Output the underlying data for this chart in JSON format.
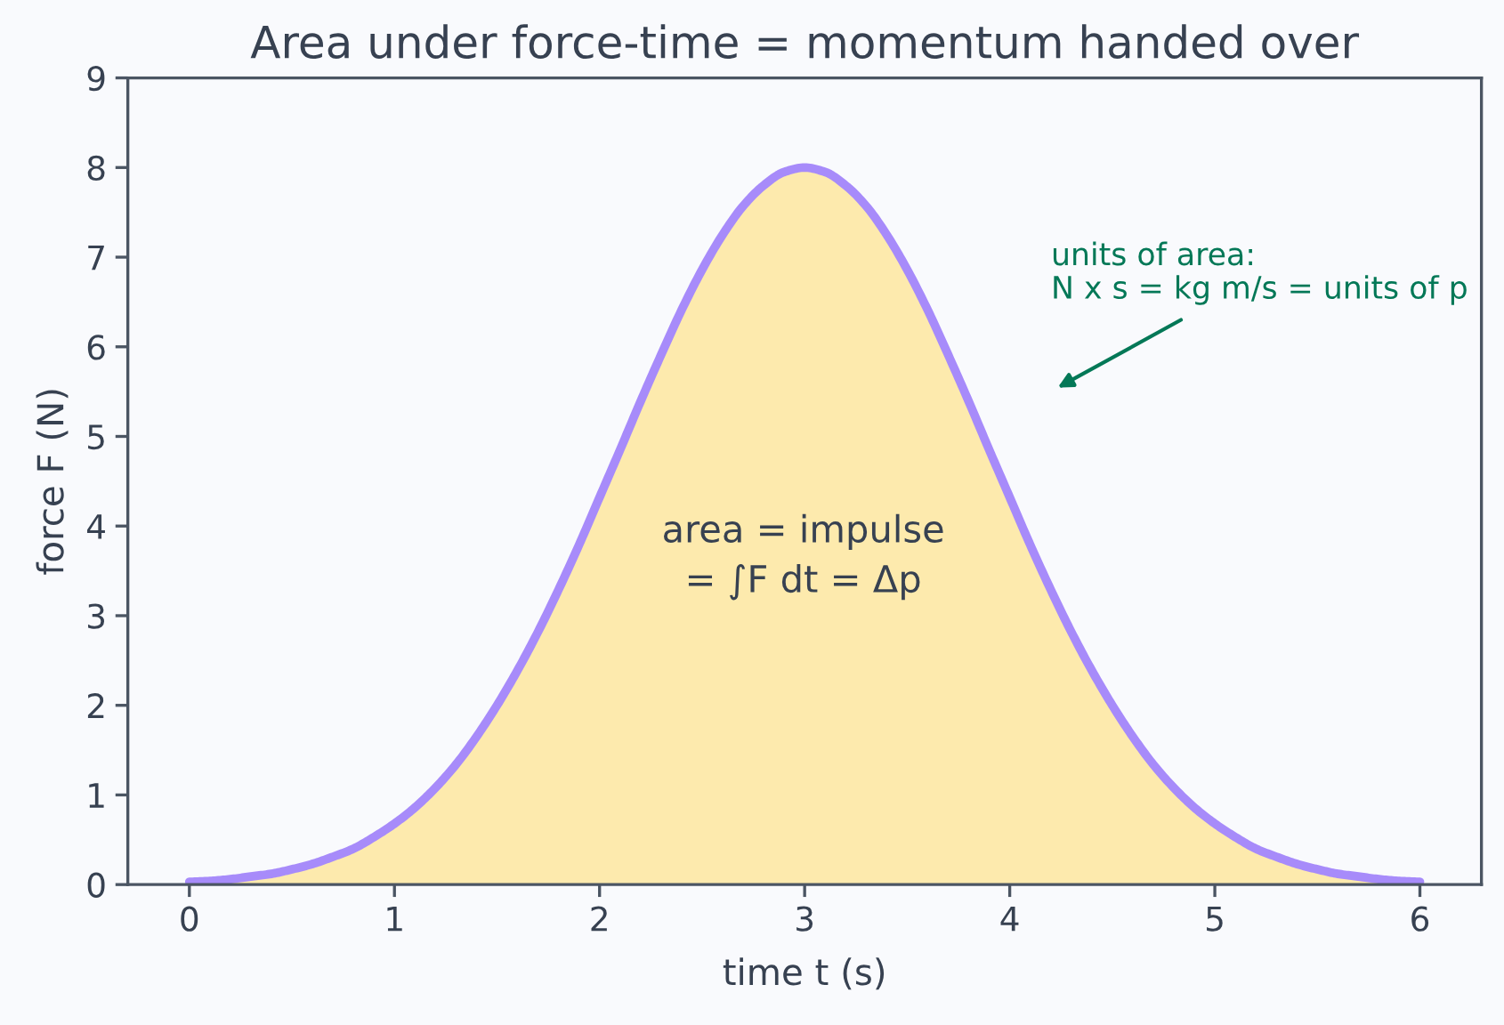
{
  "chart_data": {
    "type": "area",
    "title": "Area under force-time = momentum handed over",
    "xlabel": "time t (s)",
    "ylabel": "force F (N)",
    "x": [
      0,
      0.1,
      0.2,
      0.3,
      0.4,
      0.5,
      0.6,
      0.7,
      0.8,
      0.9,
      1.0,
      1.1,
      1.2,
      1.3,
      1.4,
      1.5,
      1.6,
      1.7,
      1.8,
      1.9,
      2.0,
      2.1,
      2.2,
      2.3,
      2.4,
      2.5,
      2.6,
      2.7,
      2.8,
      2.9,
      3.0,
      3.1,
      3.2,
      3.3,
      3.4,
      3.5,
      3.6,
      3.7,
      3.8,
      3.9,
      4.0,
      4.1,
      4.2,
      4.3,
      4.4,
      4.5,
      4.6,
      4.7,
      4.8,
      4.9,
      5.0,
      5.1,
      5.2,
      5.3,
      5.4,
      5.5,
      5.6,
      5.7,
      5.8,
      5.9,
      6.0
    ],
    "series": [
      {
        "color": "#fdeaad",
        "values": [
          0.03,
          0.04,
          0.06,
          0.09,
          0.12,
          0.17,
          0.23,
          0.31,
          0.4,
          0.53,
          0.68,
          0.86,
          1.08,
          1.34,
          1.65,
          2.0,
          2.39,
          2.82,
          3.29,
          3.79,
          4.32,
          4.85,
          5.39,
          5.91,
          6.41,
          6.86,
          7.25,
          7.57,
          7.8,
          7.95,
          8.0,
          7.95,
          7.8,
          7.57,
          7.25,
          6.86,
          6.41,
          5.91,
          5.39,
          4.85,
          4.32,
          3.79,
          3.29,
          2.82,
          2.39,
          2.0,
          1.65,
          1.34,
          1.08,
          0.86,
          0.68,
          0.53,
          0.4,
          0.31,
          0.23,
          0.17,
          0.12,
          0.09,
          0.06,
          0.04,
          0.03
        ]
      },
      {
        "type": "line",
        "color": "#a78bfa",
        "values": [
          0.03,
          0.04,
          0.06,
          0.09,
          0.12,
          0.17,
          0.23,
          0.31,
          0.4,
          0.53,
          0.68,
          0.86,
          1.08,
          1.34,
          1.65,
          2.0,
          2.39,
          2.82,
          3.29,
          3.79,
          4.32,
          4.85,
          5.39,
          5.91,
          6.41,
          6.86,
          7.25,
          7.57,
          7.8,
          7.95,
          8.0,
          7.95,
          7.8,
          7.57,
          7.25,
          6.86,
          6.41,
          5.91,
          5.39,
          4.85,
          4.32,
          3.79,
          3.29,
          2.82,
          2.39,
          2.0,
          1.65,
          1.34,
          1.08,
          0.86,
          0.68,
          0.53,
          0.4,
          0.31,
          0.23,
          0.17,
          0.12,
          0.09,
          0.06,
          0.04,
          0.03
        ]
      }
    ],
    "xlim": [
      -0.3,
      6.3
    ],
    "xticks": [
      0,
      1,
      2,
      3,
      4,
      5,
      6
    ],
    "ylim": [
      0,
      9
    ],
    "yticks": [
      0,
      1,
      2,
      3,
      4,
      5,
      6,
      7,
      8,
      9
    ],
    "annotations": [
      "area = impulse\n= ∫F dt = Δp",
      "units of area:\nN x s = kg m/s = units of p"
    ],
    "grid": false,
    "legend": false
  }
}
